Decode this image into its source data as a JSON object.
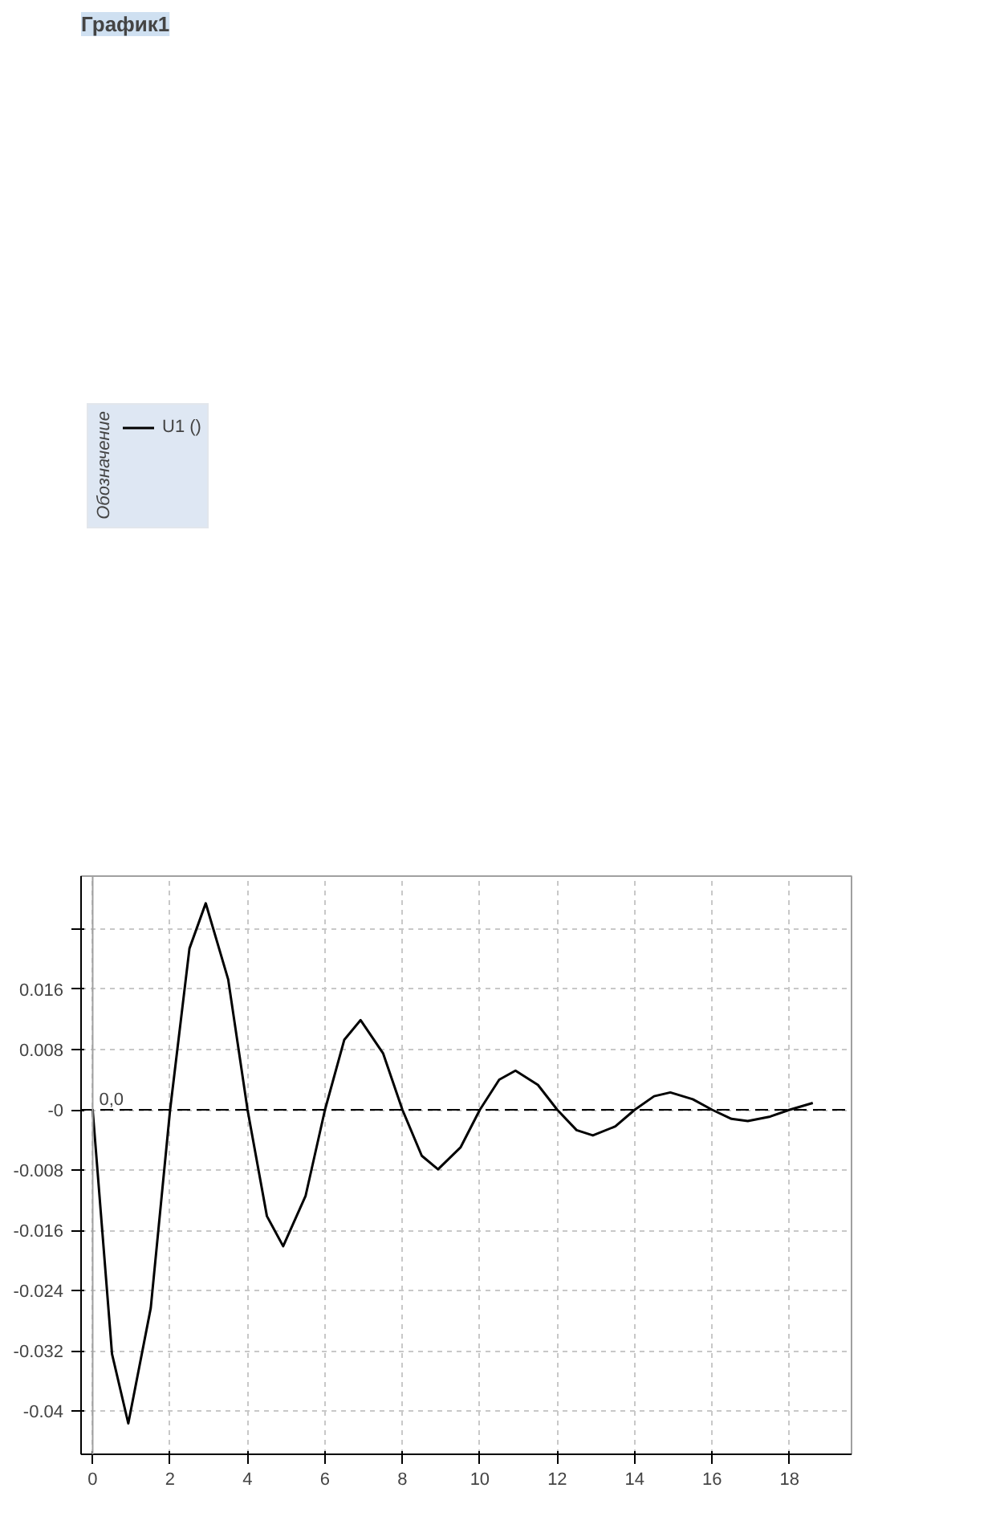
{
  "chart_data": {
    "type": "line",
    "title": "График1",
    "legend_title": "Обозначение",
    "x": [
      0,
      0.5,
      0.92,
      1.5,
      2,
      2.5,
      2.92,
      3.5,
      4,
      4.5,
      4.92,
      5.5,
      6,
      6.5,
      6.92,
      7.5,
      8,
      8.5,
      8.92,
      9.5,
      10,
      10.5,
      10.92,
      11.5,
      12,
      12.5,
      12.92,
      13.5,
      14,
      14.5,
      14.92,
      15.5,
      16,
      16.5,
      16.92,
      17.5,
      18,
      18.6
    ],
    "series": [
      {
        "name": "U1 ()",
        "color": "#000000",
        "values": [
          0,
          -0.0324,
          -0.0416,
          -0.0263,
          0,
          0.0214,
          0.0274,
          0.0173,
          0,
          -0.0141,
          -0.0181,
          -0.0114,
          0,
          0.0093,
          0.0119,
          0.0075,
          0,
          -0.0061,
          -0.0079,
          -0.005,
          0,
          0.004,
          0.0052,
          0.0033,
          0,
          -0.0027,
          -0.0034,
          -0.0022,
          0,
          0.0018,
          0.0023,
          0.0014,
          0,
          -0.0012,
          -0.0015,
          -0.0009,
          0,
          0.0009
        ]
      }
    ],
    "xlim": [
      -0.3,
      19.6
    ],
    "ylim": [
      -0.0457,
      0.031
    ],
    "xticks": [
      0,
      2,
      4,
      6,
      8,
      10,
      12,
      14,
      16,
      18
    ],
    "yticks": [
      -0.04,
      -0.032,
      -0.024,
      -0.016,
      -0.008,
      {
        "value": 0,
        "label": "-0"
      },
      0.008,
      0.016,
      {
        "value": 0.024,
        "label": null
      }
    ],
    "ref_lines": [
      {
        "axis": "y",
        "value": 0,
        "color": "#000000",
        "line_style": "dashed"
      },
      {
        "axis": "x",
        "value": 0,
        "color": "#a0a0a0",
        "line_style": "solid"
      }
    ],
    "annotations": [
      {
        "text": "0,0",
        "x": 0,
        "y": 0
      }
    ],
    "grid": true,
    "legend": "top left",
    "marker": "none",
    "line_style": "solid"
  }
}
